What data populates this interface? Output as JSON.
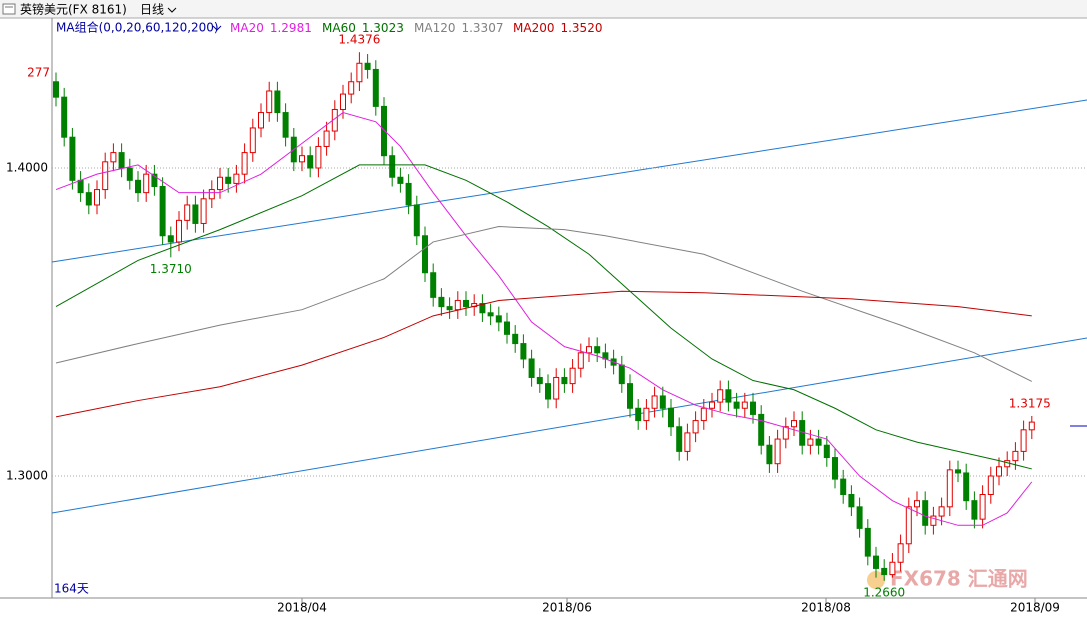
{
  "chart_data": {
    "type": "candlestick",
    "title": "英镑美元(FX 8161)",
    "period": "日线",
    "indicator": "MA组合(0,0,20,60,120,200)",
    "up_color": "#e00000",
    "down_color": "#008000",
    "open": [
      1.428,
      1.423,
      1.41,
      1.396,
      1.392,
      1.388,
      1.393,
      1.402,
      1.405,
      1.4,
      1.396,
      1.392,
      1.398,
      1.394,
      1.378,
      1.376,
      1.383,
      1.388,
      1.382,
      1.39,
      1.393,
      1.397,
      1.395,
      1.398,
      1.405,
      1.413,
      1.418,
      1.425,
      1.418,
      1.41,
      1.402,
      1.404,
      1.4,
      1.407,
      1.412,
      1.419,
      1.424,
      1.428,
      1.434,
      1.432,
      1.42,
      1.404,
      1.397,
      1.395,
      1.388,
      1.378,
      1.366,
      1.358,
      1.355,
      1.354,
      1.357,
      1.355,
      1.356,
      1.353,
      1.352,
      1.35,
      1.346,
      1.343,
      1.338,
      1.332,
      1.33,
      1.325,
      1.332,
      1.33,
      1.335,
      1.34,
      1.342,
      1.34,
      1.338,
      1.336,
      1.33,
      1.322,
      1.318,
      1.322,
      1.326,
      1.322,
      1.316,
      1.308,
      1.314,
      1.318,
      1.322,
      1.324,
      1.328,
      1.324,
      1.322,
      1.324,
      1.32,
      1.31,
      1.304,
      1.312,
      1.316,
      1.318,
      1.31,
      1.312,
      1.31,
      1.306,
      1.299,
      1.294,
      1.29,
      1.283,
      1.274,
      1.27,
      1.268,
      1.272,
      1.278,
      1.29,
      1.292,
      1.284,
      1.287,
      1.29,
      1.302,
      1.301,
      1.292,
      1.286,
      1.294,
      1.3,
      1.303,
      1.305,
      1.308,
      1.315
    ],
    "high": [
      1.431,
      1.426,
      1.413,
      1.399,
      1.395,
      1.396,
      1.405,
      1.408,
      1.408,
      1.403,
      1.399,
      1.401,
      1.401,
      1.397,
      1.381,
      1.386,
      1.391,
      1.391,
      1.393,
      1.396,
      1.4,
      1.4,
      1.401,
      1.408,
      1.416,
      1.421,
      1.428,
      1.428,
      1.421,
      1.413,
      1.407,
      1.407,
      1.41,
      1.415,
      1.422,
      1.427,
      1.431,
      1.4376,
      1.437,
      1.435,
      1.423,
      1.407,
      1.4,
      1.398,
      1.391,
      1.381,
      1.369,
      1.361,
      1.358,
      1.36,
      1.36,
      1.359,
      1.359,
      1.356,
      1.355,
      1.353,
      1.349,
      1.346,
      1.341,
      1.335,
      1.333,
      1.335,
      1.335,
      1.338,
      1.343,
      1.345,
      1.345,
      1.343,
      1.341,
      1.339,
      1.333,
      1.325,
      1.325,
      1.329,
      1.329,
      1.325,
      1.319,
      1.317,
      1.321,
      1.325,
      1.327,
      1.331,
      1.331,
      1.327,
      1.327,
      1.327,
      1.323,
      1.313,
      1.315,
      1.319,
      1.321,
      1.321,
      1.315,
      1.315,
      1.313,
      1.309,
      1.302,
      1.297,
      1.293,
      1.286,
      1.277,
      1.273,
      1.275,
      1.281,
      1.293,
      1.295,
      1.295,
      1.29,
      1.293,
      1.305,
      1.305,
      1.304,
      1.295,
      1.297,
      1.303,
      1.306,
      1.308,
      1.311,
      1.318,
      1.3195
    ],
    "low": [
      1.42,
      1.407,
      1.393,
      1.389,
      1.385,
      1.385,
      1.39,
      1.399,
      1.397,
      1.393,
      1.389,
      1.389,
      1.391,
      1.375,
      1.371,
      1.373,
      1.38,
      1.379,
      1.379,
      1.387,
      1.39,
      1.392,
      1.392,
      1.395,
      1.402,
      1.41,
      1.415,
      1.415,
      1.407,
      1.399,
      1.399,
      1.397,
      1.397,
      1.404,
      1.409,
      1.416,
      1.421,
      1.425,
      1.429,
      1.417,
      1.401,
      1.394,
      1.392,
      1.385,
      1.375,
      1.363,
      1.355,
      1.352,
      1.351,
      1.351,
      1.352,
      1.352,
      1.35,
      1.349,
      1.347,
      1.343,
      1.34,
      1.335,
      1.329,
      1.327,
      1.322,
      1.322,
      1.327,
      1.327,
      1.332,
      1.337,
      1.337,
      1.335,
      1.333,
      1.327,
      1.319,
      1.315,
      1.315,
      1.319,
      1.319,
      1.313,
      1.305,
      1.305,
      1.311,
      1.315,
      1.319,
      1.321,
      1.321,
      1.319,
      1.319,
      1.317,
      1.307,
      1.301,
      1.301,
      1.309,
      1.313,
      1.307,
      1.307,
      1.307,
      1.303,
      1.296,
      1.291,
      1.287,
      1.28,
      1.271,
      1.267,
      1.266,
      1.267,
      1.269,
      1.275,
      1.287,
      1.281,
      1.281,
      1.284,
      1.287,
      1.298,
      1.289,
      1.283,
      1.283,
      1.291,
      1.297,
      1.3,
      1.302,
      1.305,
      1.312
    ],
    "close": [
      1.423,
      1.41,
      1.396,
      1.392,
      1.388,
      1.393,
      1.402,
      1.405,
      1.4,
      1.396,
      1.392,
      1.398,
      1.394,
      1.378,
      1.376,
      1.383,
      1.388,
      1.382,
      1.39,
      1.393,
      1.397,
      1.395,
      1.398,
      1.405,
      1.413,
      1.418,
      1.425,
      1.418,
      1.41,
      1.402,
      1.404,
      1.4,
      1.407,
      1.412,
      1.419,
      1.424,
      1.428,
      1.434,
      1.432,
      1.42,
      1.404,
      1.397,
      1.395,
      1.388,
      1.378,
      1.366,
      1.358,
      1.355,
      1.354,
      1.357,
      1.355,
      1.356,
      1.353,
      1.352,
      1.35,
      1.346,
      1.343,
      1.338,
      1.332,
      1.33,
      1.325,
      1.332,
      1.33,
      1.335,
      1.34,
      1.342,
      1.34,
      1.338,
      1.336,
      1.33,
      1.322,
      1.318,
      1.322,
      1.326,
      1.322,
      1.316,
      1.308,
      1.314,
      1.318,
      1.322,
      1.324,
      1.328,
      1.324,
      1.322,
      1.324,
      1.32,
      1.31,
      1.304,
      1.312,
      1.316,
      1.318,
      1.31,
      1.312,
      1.31,
      1.306,
      1.299,
      1.294,
      1.29,
      1.283,
      1.274,
      1.27,
      1.268,
      1.272,
      1.278,
      1.29,
      1.292,
      1.284,
      1.287,
      1.29,
      1.302,
      1.301,
      1.292,
      1.286,
      1.294,
      1.3,
      1.303,
      1.305,
      1.308,
      1.315,
      1.3175
    ],
    "series": [
      {
        "name": "MA20",
        "legend_value": "1.2981",
        "color": "#e020e0",
        "x": [
          0,
          5,
          10,
          15,
          20,
          25,
          30,
          35,
          39,
          42,
          46,
          50,
          54,
          58,
          62,
          66,
          70,
          74,
          78,
          82,
          86,
          90,
          94,
          98,
          102,
          106,
          110,
          113,
          116,
          119
        ],
        "values": [
          1.393,
          1.398,
          1.401,
          1.392,
          1.392,
          1.398,
          1.408,
          1.418,
          1.415,
          1.407,
          1.392,
          1.378,
          1.365,
          1.35,
          1.342,
          1.339,
          1.335,
          1.328,
          1.323,
          1.32,
          1.318,
          1.315,
          1.312,
          1.3,
          1.292,
          1.287,
          1.284,
          1.284,
          1.288,
          1.2981
        ]
      },
      {
        "name": "MA60",
        "legend_value": "1.3023",
        "color": "#007000",
        "x": [
          0,
          10,
          20,
          30,
          37,
          45,
          50,
          55,
          60,
          65,
          70,
          75,
          80,
          85,
          90,
          95,
          100,
          105,
          110,
          115,
          119
        ],
        "values": [
          1.355,
          1.37,
          1.38,
          1.391,
          1.401,
          1.401,
          1.396,
          1.389,
          1.381,
          1.372,
          1.36,
          1.348,
          1.338,
          1.331,
          1.328,
          1.322,
          1.315,
          1.311,
          1.308,
          1.305,
          1.3023
        ]
      },
      {
        "name": "MA120",
        "legend_value": "1.3307",
        "color": "#808080",
        "x": [
          0,
          10,
          20,
          30,
          40,
          46,
          54,
          62,
          67,
          79,
          91,
          103,
          112,
          119
        ],
        "values": [
          1.3367,
          1.343,
          1.349,
          1.354,
          1.364,
          1.376,
          1.381,
          1.38,
          1.378,
          1.372,
          1.36,
          1.349,
          1.34,
          1.3307
        ]
      },
      {
        "name": "MA200",
        "legend_value": "1.3520",
        "color": "#c00000",
        "x": [
          0,
          10,
          20,
          30,
          40,
          46,
          54,
          69,
          79,
          97,
          110,
          119
        ],
        "values": [
          1.3192,
          1.3245,
          1.329,
          1.336,
          1.345,
          1.352,
          1.357,
          1.36,
          1.3595,
          1.3575,
          1.355,
          1.352
        ]
      }
    ],
    "annotations": [
      {
        "value": 1.4376,
        "label": "1.4376"
      },
      {
        "value": 1.371,
        "label": "1.3710"
      },
      {
        "value": 1.266,
        "label": "1.2660"
      },
      {
        "value": 1.3175,
        "label": "1.3175"
      }
    ],
    "ylim": [
      1.2604,
      1.4487
    ],
    "yticks": [
      {
        "value": 1.3,
        "label": "1.3000"
      },
      {
        "value": 1.4,
        "label": "1.4000"
      }
    ],
    "grid": true,
    "edge_label": "277",
    "count_label": "164天",
    "x_labels": [
      "2018/04",
      "2018/06",
      "2018/08",
      "2018/09"
    ],
    "watermark": "FX678 汇通网"
  }
}
